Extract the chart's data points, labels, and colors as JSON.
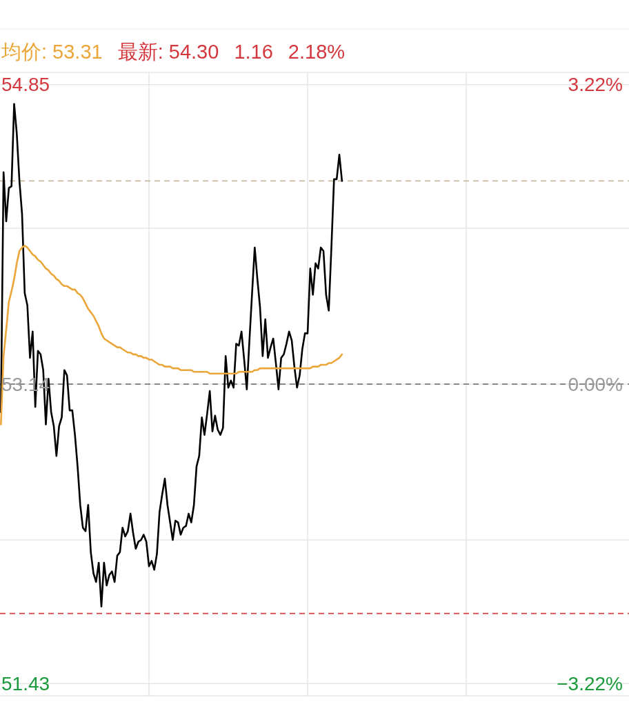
{
  "chart_data": {
    "type": "line",
    "annotations": [
      "均价: 53.31",
      "最新: 54.30",
      "1.16",
      "2.18%"
    ],
    "categories": [
      null,
      null,
      null,
      null,
      null,
      null,
      null,
      null,
      null,
      null,
      null,
      null,
      null,
      null,
      null,
      null,
      null,
      null,
      null,
      null,
      null,
      null,
      null,
      null,
      null,
      null,
      null,
      null,
      null,
      null,
      null,
      null,
      null,
      null,
      null,
      null,
      null,
      null,
      null,
      null,
      null,
      null,
      null,
      null,
      null,
      null,
      null,
      null,
      null,
      null,
      null,
      null,
      null,
      null,
      null,
      null,
      null,
      null,
      null,
      null,
      null,
      null,
      null,
      null,
      null,
      null,
      null,
      null,
      null,
      null,
      null,
      null,
      null,
      null,
      null,
      null,
      null,
      null,
      null,
      null,
      null,
      null,
      null,
      null,
      null,
      null,
      null,
      null,
      null,
      null,
      null,
      null,
      null,
      null,
      null,
      null,
      null,
      null,
      null,
      null,
      null,
      null,
      null,
      null,
      null,
      null,
      null,
      null,
      null,
      null,
      null,
      null,
      null,
      null,
      null,
      null,
      null,
      null,
      null,
      null,
      null,
      null,
      null,
      null,
      null,
      null,
      null,
      null,
      null,
      null,
      null,
      null,
      null,
      null,
      null,
      null,
      null,
      null,
      null,
      null,
      null,
      null,
      null,
      null,
      null,
      null,
      null,
      null,
      null,
      null,
      null,
      null,
      null,
      null,
      null,
      null,
      null,
      null,
      null,
      null,
      null,
      null,
      null,
      null,
      null,
      null,
      null,
      null,
      null,
      null,
      null,
      null,
      null,
      null,
      null,
      null,
      null,
      null,
      null,
      null,
      null,
      null,
      null,
      null,
      null,
      null,
      null,
      null,
      null,
      null,
      null,
      null,
      null,
      null,
      null,
      null,
      null,
      null,
      null,
      null,
      null,
      null,
      null,
      null,
      null,
      null,
      null,
      null,
      null,
      null,
      null,
      null,
      null,
      null,
      null,
      null,
      null,
      null,
      null,
      null,
      null,
      null,
      null,
      null,
      null,
      null,
      null,
      null,
      null,
      null,
      null,
      null,
      null,
      null,
      null,
      null,
      null,
      null,
      null,
      null,
      null
    ],
    "ylim": [
      51.36,
      54.92
    ],
    "yticks": [
      51.43,
      {
        "value": 52.25,
        "label": null
      },
      53.14,
      {
        "value": 54.03,
        "label": null
      },
      54.85
    ],
    "y2lim": [
      -3.35,
      3.35
    ],
    "y2ticks": [
      {
        "value": -3.22,
        "label": "−3.22%"
      },
      {
        "value": 0,
        "label": "0.00%"
      },
      {
        "value": 3.22,
        "label": "3.22%"
      }
    ],
    "grid": true,
    "marker": "none",
    "line_style": "solid",
    "ref_lines": [
      {
        "axis": "y",
        "value": 53.14,
        "color": "#888888",
        "line_style": "dashed"
      },
      {
        "axis": "y",
        "value": 54.3,
        "color": "#c9b8a0",
        "line_style": "dashed"
      },
      {
        "axis": "y",
        "value": 51.83,
        "color": "#d23c3c",
        "line_style": "dashed"
      }
    ],
    "series": [
      {
        "color": "#000000",
        "values": [
          null,
          null,
          null,
          null,
          52.98,
          54.35,
          54.07,
          54.26,
          54.27,
          54.74,
          54.57,
          54.3,
          54.11,
          53.66,
          53.59,
          53.29,
          53.44,
          53.01,
          53.33,
          53.31,
          53.22,
          52.91,
          53.17,
          52.98,
          52.9,
          52.73,
          52.9,
          52.95,
          53.22,
          53.19,
          52.99,
          52.99,
          52.85,
          52.67,
          52.45,
          52.32,
          52.3,
          52.45,
          52.18,
          52.06,
          52.01,
          52.12,
          51.87,
          52.12,
          51.99,
          52.05,
          52.07,
          52.01,
          52.16,
          52.18,
          52.32,
          52.27,
          52.3,
          52.4,
          52.29,
          52.2,
          52.24,
          52.25,
          52.28,
          52.24,
          52.1,
          52.13,
          52.08,
          52.17,
          52.41,
          52.51,
          52.6,
          52.45,
          52.35,
          52.25,
          52.36,
          52.35,
          52.28,
          52.32,
          52.33,
          52.4,
          52.35,
          52.45,
          52.67,
          52.73,
          52.95,
          52.85,
          52.97,
          53.1,
          52.87,
          52.96,
          52.88,
          52.85,
          52.89,
          53.3,
          53.12,
          53.16,
          53.12,
          53.37,
          53.36,
          53.44,
          53.28,
          53.11,
          53.39,
          53.66,
          53.92,
          53.74,
          53.58,
          53.3,
          53.51,
          53.29,
          53.35,
          53.4,
          53.26,
          53.11,
          53.29,
          53.31,
          53.37,
          53.44,
          53.39,
          53.24,
          53.12,
          53.19,
          53.34,
          53.43,
          53.43,
          53.8,
          53.65,
          53.83,
          53.8,
          53.92,
          53.9,
          53.65,
          53.56,
          53.92,
          54.31,
          54.31,
          54.45,
          54.3,
          null,
          null,
          null,
          null,
          null,
          null,
          null,
          null,
          null,
          null,
          null,
          null,
          null,
          null,
          null,
          null,
          null,
          null,
          null,
          null,
          null,
          null,
          null,
          null,
          null,
          null,
          null,
          null,
          null,
          null,
          null,
          null,
          null,
          null,
          null,
          null,
          null,
          null,
          null,
          null,
          null,
          null,
          null,
          null,
          null,
          null,
          null,
          null,
          null,
          null,
          null,
          null,
          null,
          null,
          null,
          null,
          null,
          null,
          null,
          null,
          null,
          null,
          null,
          null,
          null,
          null,
          null,
          null,
          null,
          null,
          null,
          null,
          null,
          null,
          null,
          null,
          null,
          null,
          null,
          null,
          null,
          null,
          null,
          null,
          null,
          null,
          null,
          null,
          null,
          null,
          null,
          null,
          null,
          null,
          null,
          null,
          null,
          null,
          null,
          null,
          null,
          null,
          null,
          null,
          null,
          null,
          null
        ]
      },
      {
        "color": "#eba63a",
        "values": [
          null,
          null,
          null,
          null,
          52.91,
          53.3,
          53.45,
          53.61,
          53.67,
          53.74,
          53.83,
          53.9,
          53.92,
          53.93,
          53.92,
          53.9,
          53.88,
          53.87,
          53.85,
          53.84,
          53.82,
          53.8,
          53.79,
          53.77,
          53.76,
          53.74,
          53.73,
          53.71,
          53.7,
          53.7,
          53.69,
          53.68,
          53.68,
          53.66,
          53.65,
          53.63,
          53.6,
          53.57,
          53.55,
          53.53,
          53.5,
          53.47,
          53.43,
          53.4,
          53.39,
          53.38,
          53.37,
          53.36,
          53.35,
          53.35,
          53.34,
          53.33,
          53.32,
          53.32,
          53.31,
          53.31,
          53.3,
          53.3,
          53.29,
          53.29,
          53.28,
          53.28,
          53.27,
          53.26,
          53.25,
          53.25,
          53.24,
          53.24,
          53.24,
          53.23,
          53.23,
          53.23,
          53.22,
          53.22,
          53.22,
          53.22,
          53.22,
          53.21,
          53.21,
          53.21,
          53.21,
          53.21,
          53.21,
          53.2,
          53.2,
          53.2,
          53.2,
          53.2,
          53.2,
          53.2,
          53.2,
          53.2,
          53.2,
          53.2,
          53.21,
          53.21,
          53.21,
          53.21,
          53.21,
          53.21,
          53.22,
          53.22,
          53.23,
          53.23,
          53.23,
          53.23,
          53.23,
          53.23,
          53.23,
          53.23,
          53.23,
          53.23,
          53.23,
          53.23,
          53.23,
          53.23,
          53.23,
          53.23,
          53.23,
          53.23,
          53.23,
          53.23,
          53.24,
          53.24,
          53.24,
          53.25,
          53.25,
          53.25,
          53.26,
          53.26,
          53.27,
          53.28,
          53.29,
          53.31,
          null,
          null,
          null,
          null,
          null,
          null,
          null,
          null,
          null,
          null,
          null,
          null,
          null,
          null,
          null,
          null,
          null,
          null,
          null,
          null,
          null,
          null,
          null,
          null,
          null,
          null,
          null,
          null,
          null,
          null,
          null,
          null,
          null,
          null,
          null,
          null,
          null,
          null,
          null,
          null,
          null,
          null,
          null,
          null,
          null,
          null,
          null,
          null,
          null,
          null,
          null,
          null,
          null,
          null,
          null,
          null,
          null,
          null,
          null,
          null,
          null,
          null,
          null,
          null,
          null,
          null,
          null,
          null,
          null,
          null,
          null,
          null,
          null,
          null,
          null,
          null,
          null,
          null,
          null,
          null,
          null,
          null,
          null,
          null,
          null,
          null,
          null,
          null,
          null,
          null,
          null,
          null,
          null,
          null,
          null,
          null,
          null,
          null,
          null,
          null,
          null,
          null,
          null,
          null,
          null,
          null,
          null
        ]
      }
    ]
  }
}
